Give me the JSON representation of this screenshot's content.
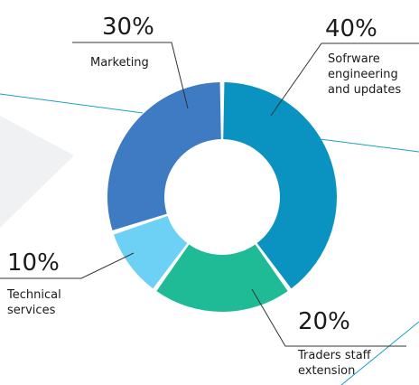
{
  "chart_data": {
    "type": "pie",
    "donut": true,
    "categories": [
      "Sofrware engineering and updates",
      "Traders staff extension",
      "Technical services",
      "Marketing"
    ],
    "values": [
      40,
      20,
      10,
      30
    ],
    "value_labels": [
      "40%",
      "20%",
      "10%",
      "30%"
    ],
    "label_lines": [
      [
        "Sofrware",
        "engineering",
        "and updates"
      ],
      [
        "Traders staff",
        "extension"
      ],
      [
        "Technical",
        "services"
      ],
      [
        "Marketing"
      ]
    ],
    "colors": [
      "#0a93c0",
      "#1ebb96",
      "#6dd1f6",
      "#3e7bc2"
    ],
    "decor_colors": {
      "band": "#f0f1f2",
      "accent_line": "#1aa0c8",
      "leader_line": "#333333"
    },
    "start_angle_deg": 0,
    "direction": "clockwise",
    "legend": "none"
  }
}
